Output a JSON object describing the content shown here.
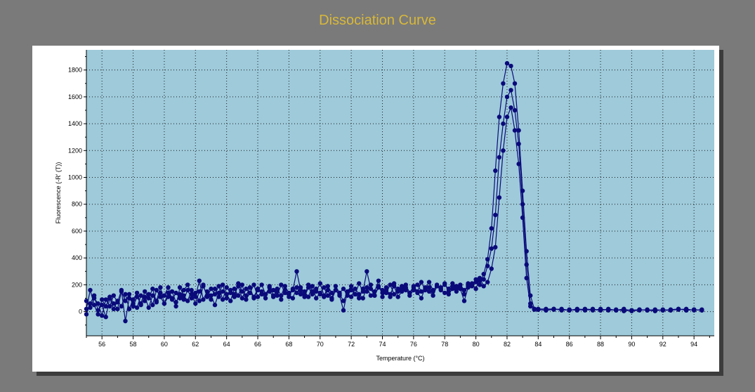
{
  "title": "Dissociation Curve",
  "colors": {
    "background": "#7a7a7a",
    "title": "#d8b83a",
    "plot_area": "#9ecada",
    "series": "#0a0a7a",
    "grid": "#1a1a1a"
  },
  "chart_data": {
    "type": "line",
    "title": "Dissociation Curve",
    "xlabel": "Temperature (°C)",
    "ylabel": "Fluorescence (-R' (T))",
    "xlim": [
      55,
      95.3
    ],
    "ylim": [
      -180,
      1950
    ],
    "xticks": [
      56,
      58,
      60,
      62,
      64,
      66,
      68,
      70,
      72,
      74,
      76,
      78,
      80,
      82,
      84,
      86,
      88,
      90,
      92,
      94
    ],
    "yticks": [
      0,
      200,
      400,
      600,
      800,
      1000,
      1200,
      1400,
      1600,
      1800
    ],
    "grid": true,
    "marker": "filled-circle",
    "series": [
      {
        "x": [
          55.0,
          55.25,
          55.5,
          55.75,
          56.0,
          56.25,
          56.5,
          56.75,
          57.0,
          57.25,
          57.5,
          57.75,
          58.0,
          58.25,
          58.5,
          58.75,
          59.0,
          59.25,
          59.5,
          59.75,
          60.0,
          60.25,
          60.5,
          60.75,
          61.0,
          61.25,
          61.5,
          61.75,
          62.0,
          62.25,
          62.5,
          62.75,
          63.0,
          63.25,
          63.5,
          63.75,
          64.0,
          64.25,
          64.5,
          64.75,
          65.0,
          65.25,
          65.5,
          65.75,
          66.0,
          66.25,
          66.5,
          66.75,
          67.0,
          67.25,
          67.5,
          67.75,
          68.0,
          68.25,
          68.5,
          68.75,
          69.0,
          69.25,
          69.5,
          69.75,
          70.0,
          70.25,
          70.5,
          70.75,
          71.0,
          71.25,
          71.5,
          71.75,
          72.0,
          72.25,
          72.5,
          72.75,
          73.0,
          73.25,
          73.5,
          73.75,
          74.0,
          74.25,
          74.5,
          74.75,
          75.0,
          75.25,
          75.5,
          75.75,
          76.0,
          76.25,
          76.5,
          76.75,
          77.0,
          77.25,
          77.5,
          77.75,
          78.0,
          78.25,
          78.5,
          78.75,
          79.0,
          79.25,
          79.5,
          79.75,
          80.0,
          80.25,
          80.5,
          80.75,
          81.0,
          81.25,
          81.5,
          81.75,
          82.0,
          82.25,
          82.5,
          82.75,
          83.0,
          83.25,
          83.5,
          83.75,
          84.0,
          84.5,
          85.0,
          85.5,
          86.0,
          86.5,
          87.0,
          87.5,
          88.0,
          88.5,
          89.0,
          89.5,
          90.0,
          90.5,
          91.0,
          91.5,
          92.0,
          92.5,
          93.0,
          93.5,
          94.0,
          94.5
        ],
        "y": [
          20,
          160,
          50,
          -20,
          90,
          40,
          110,
          60,
          20,
          150,
          80,
          130,
          40,
          110,
          60,
          150,
          100,
          170,
          70,
          140,
          120,
          180,
          90,
          140,
          100,
          160,
          200,
          130,
          60,
          150,
          200,
          110,
          170,
          130,
          190,
          90,
          180,
          140,
          110,
          210,
          150,
          120,
          180,
          100,
          160,
          200,
          130,
          150,
          110,
          170,
          120,
          190,
          140,
          160,
          300,
          160,
          110,
          180,
          130,
          150,
          210,
          120,
          160,
          100,
          190,
          140,
          170,
          120,
          160,
          130,
          210,
          150,
          300,
          170,
          120,
          190,
          140,
          180,
          110,
          210,
          150,
          170,
          200,
          140,
          190,
          150,
          220,
          160,
          180,
          150,
          200,
          170,
          210,
          150,
          190,
          170,
          180,
          130,
          210,
          190,
          220,
          200,
          280,
          390,
          620,
          1050,
          1450,
          1700,
          1850,
          1830,
          1700,
          1350,
          900,
          450,
          120,
          20,
          20,
          20,
          20,
          10,
          15,
          10,
          20,
          15,
          10,
          20,
          10,
          15,
          10,
          15,
          10,
          5,
          15,
          10,
          20,
          10,
          15,
          10
        ]
      },
      {
        "x": [
          55.0,
          55.25,
          55.5,
          55.75,
          56.0,
          56.25,
          56.5,
          56.75,
          57.0,
          57.25,
          57.5,
          57.75,
          58.0,
          58.25,
          58.5,
          58.75,
          59.0,
          59.25,
          59.5,
          59.75,
          60.0,
          60.25,
          60.5,
          60.75,
          61.0,
          61.25,
          61.5,
          61.75,
          62.0,
          62.25,
          62.5,
          62.75,
          63.0,
          63.25,
          63.5,
          63.75,
          64.0,
          64.25,
          64.5,
          64.75,
          65.0,
          65.25,
          65.5,
          65.75,
          66.0,
          66.25,
          66.5,
          66.75,
          67.0,
          67.25,
          67.5,
          67.75,
          68.0,
          68.25,
          68.5,
          68.75,
          69.0,
          69.25,
          69.5,
          69.75,
          70.0,
          70.25,
          70.5,
          70.75,
          71.0,
          71.25,
          71.5,
          71.75,
          72.0,
          72.25,
          72.5,
          72.75,
          73.0,
          73.25,
          73.5,
          73.75,
          74.0,
          74.25,
          74.5,
          74.75,
          75.0,
          75.25,
          75.5,
          75.75,
          76.0,
          76.25,
          76.5,
          76.75,
          77.0,
          77.25,
          77.5,
          77.75,
          78.0,
          78.25,
          78.5,
          78.75,
          79.0,
          79.25,
          79.5,
          79.75,
          80.0,
          80.25,
          80.5,
          80.75,
          81.0,
          81.25,
          81.5,
          81.75,
          82.0,
          82.25,
          82.5,
          82.75,
          83.0,
          83.25,
          83.5,
          83.75,
          84.0,
          84.5,
          85.0,
          85.5,
          86.0,
          86.5,
          87.0,
          87.5,
          88.0,
          88.5,
          89.0,
          89.5,
          90.0,
          90.5,
          91.0,
          91.5,
          92.0,
          92.5,
          93.0,
          93.5,
          94.0,
          94.5
        ],
        "y": [
          80,
          30,
          100,
          60,
          -30,
          90,
          40,
          120,
          70,
          160,
          -70,
          100,
          60,
          30,
          120,
          80,
          130,
          50,
          160,
          110,
          60,
          140,
          100,
          40,
          180,
          120,
          80,
          160,
          110,
          230,
          90,
          150,
          120,
          50,
          140,
          200,
          100,
          160,
          130,
          190,
          100,
          170,
          140,
          200,
          110,
          150,
          130,
          180,
          160,
          120,
          200,
          140,
          110,
          170,
          140,
          180,
          120,
          200,
          150,
          170,
          130,
          110,
          190,
          140,
          160,
          120,
          10,
          150,
          190,
          130,
          100,
          170,
          150,
          200,
          120,
          180,
          160,
          140,
          200,
          130,
          170,
          190,
          160,
          140,
          180,
          200,
          150,
          170,
          220,
          160,
          190,
          180,
          200,
          170,
          210,
          190,
          170,
          80,
          180,
          200,
          240,
          230,
          240,
          340,
          470,
          720,
          1150,
          1400,
          1600,
          1650,
          1500,
          1250,
          800,
          350,
          60,
          20,
          15,
          10,
          15,
          20,
          10,
          15,
          10,
          20,
          10,
          15,
          10,
          20,
          5,
          10,
          15,
          10,
          10,
          15,
          20,
          10,
          15,
          10
        ]
      },
      {
        "x": [
          55.0,
          55.25,
          55.5,
          55.75,
          56.0,
          56.25,
          56.5,
          56.75,
          57.0,
          57.25,
          57.5,
          57.75,
          58.0,
          58.25,
          58.5,
          58.75,
          59.0,
          59.25,
          59.5,
          59.75,
          60.0,
          60.25,
          60.5,
          60.75,
          61.0,
          61.25,
          61.5,
          61.75,
          62.0,
          62.25,
          62.5,
          62.75,
          63.0,
          63.25,
          63.5,
          63.75,
          64.0,
          64.25,
          64.5,
          64.75,
          65.0,
          65.25,
          65.5,
          65.75,
          66.0,
          66.25,
          66.5,
          66.75,
          67.0,
          67.25,
          67.5,
          67.75,
          68.0,
          68.25,
          68.5,
          68.75,
          69.0,
          69.25,
          69.5,
          69.75,
          70.0,
          70.25,
          70.5,
          70.75,
          71.0,
          71.25,
          71.5,
          71.75,
          72.0,
          72.25,
          72.5,
          72.75,
          73.0,
          73.25,
          73.5,
          73.75,
          74.0,
          74.25,
          74.5,
          74.75,
          75.0,
          75.25,
          75.5,
          75.75,
          76.0,
          76.25,
          76.5,
          76.75,
          77.0,
          77.25,
          77.5,
          77.75,
          78.0,
          78.25,
          78.5,
          78.75,
          79.0,
          79.25,
          79.5,
          79.75,
          80.0,
          80.25,
          80.5,
          80.75,
          81.0,
          81.25,
          81.5,
          81.75,
          82.0,
          82.25,
          82.5,
          82.75,
          83.0,
          83.25,
          83.5,
          83.75,
          84.0,
          84.5,
          85.0,
          85.5,
          86.0,
          86.5,
          87.0,
          87.5,
          88.0,
          88.5,
          89.0,
          89.5,
          90.0,
          90.5,
          91.0,
          91.5,
          92.0,
          92.5,
          93.0,
          93.5,
          94.0,
          94.5
        ],
        "y": [
          -20,
          60,
          120,
          10,
          50,
          -40,
          100,
          20,
          80,
          40,
          130,
          20,
          90,
          140,
          50,
          110,
          30,
          120,
          80,
          180,
          60,
          110,
          150,
          70,
          130,
          90,
          160,
          100,
          140,
          80,
          190,
          120,
          90,
          170,
          110,
          150,
          130,
          80,
          170,
          120,
          200,
          90,
          140,
          110,
          170,
          130,
          100,
          190,
          120,
          150,
          90,
          160,
          130,
          100,
          180,
          130,
          150,
          110,
          190,
          100,
          140,
          180,
          120,
          90,
          160,
          130,
          80,
          140,
          110,
          170,
          130,
          100,
          180,
          120,
          150,
          230,
          110,
          160,
          130,
          190,
          110,
          150,
          180,
          120,
          160,
          140,
          100,
          180,
          150,
          120,
          190,
          160,
          140,
          130,
          170,
          150,
          200,
          160,
          190,
          210,
          170,
          250,
          190,
          220,
          320,
          480,
          850,
          1200,
          1450,
          1520,
          1350,
          1100,
          700,
          250,
          40,
          15,
          15,
          10,
          20,
          15,
          10,
          20,
          15,
          10,
          20,
          10,
          15,
          5,
          10,
          15,
          10,
          15,
          10,
          10,
          15,
          20,
          10,
          15
        ]
      }
    ]
  }
}
